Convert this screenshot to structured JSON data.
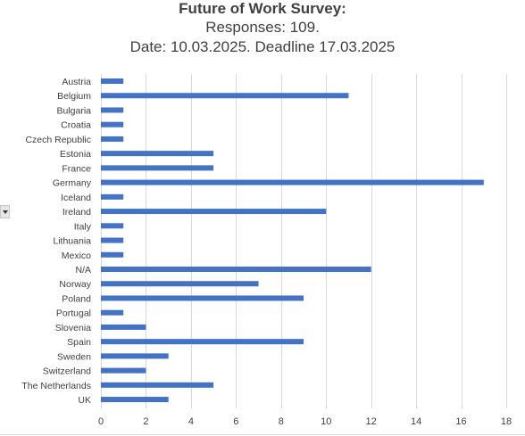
{
  "chart_data": {
    "type": "bar",
    "orientation": "horizontal",
    "title": "Future of Work Survey:",
    "subtitle_lines": [
      "Responses: 109.",
      "Date: 10.03.2025. Deadline 17.03.2025"
    ],
    "categories": [
      "Austria",
      "Belgium",
      "Bulgaria ",
      "Croatia",
      "Czech Republic",
      "Estonia",
      "France",
      "Germany",
      "Iceland",
      "Ireland",
      "Italy",
      "Lithuania",
      "Mexico",
      "N/A",
      "Norway",
      "Poland",
      "Portugal",
      "Slovenia",
      "Spain",
      "Sweden",
      "Switzerland",
      "The Netherlands",
      "UK"
    ],
    "values": [
      1,
      11,
      1,
      1,
      1,
      5,
      5,
      17,
      1,
      10,
      1,
      1,
      1,
      12,
      7,
      9,
      1,
      2,
      9,
      3,
      2,
      5,
      3
    ],
    "xlim": [
      0,
      18
    ],
    "xticks": [
      0,
      2,
      4,
      6,
      8,
      10,
      12,
      14,
      16,
      18
    ],
    "xlabel": "",
    "ylabel": "",
    "grid": true,
    "bar_color": "#4472c4",
    "grid_color": "#d9d9d9"
  },
  "ui": {
    "side_toggle": "chevron-down-icon"
  }
}
